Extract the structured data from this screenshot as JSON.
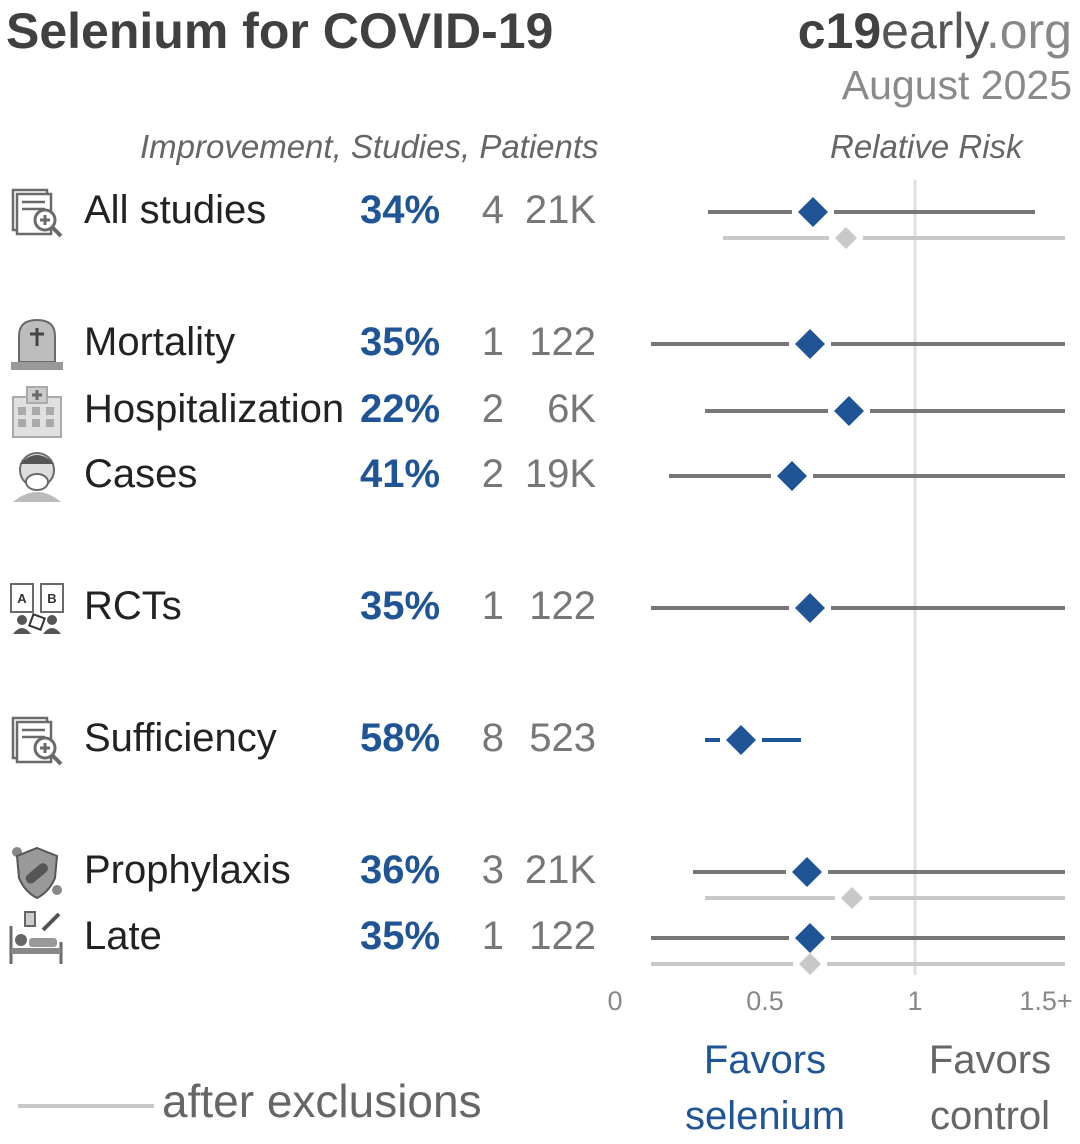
{
  "header": {
    "title": "Selenium for COVID-19",
    "brand_bold": "c19",
    "brand_mid": "early",
    "brand_end": ".org",
    "date": "August 2025",
    "columns_label": "Improvement, Studies, Patients",
    "axis_title": "Relative Risk"
  },
  "legend": {
    "label": "after exclusions",
    "line_color": "#c8c8c8"
  },
  "favors": {
    "left_line1": "Favors",
    "left_line2": "selenium",
    "right_line1": "Favors",
    "right_line2": "control"
  },
  "colors": {
    "accent_blue": "#1f5597",
    "ci_gray": "#777777",
    "exclusion_gray": "#c8c8c8",
    "ref_line": "#e0e0e0"
  },
  "chart_data": {
    "type": "forest",
    "xlim": [
      0,
      1.5
    ],
    "xticks": [
      "0",
      "0.5",
      "1",
      "1.5+"
    ],
    "xtick_values": [
      0,
      0.5,
      1,
      1.5
    ],
    "reference_line": 1,
    "rows": [
      {
        "label": "All studies",
        "icon": "study-analysis-icon",
        "improvement": "34%",
        "studies": "4",
        "patients": "21K",
        "rr": 0.66,
        "lo": 0.31,
        "hi": 1.4,
        "excl": {
          "rr": 0.77,
          "lo": 0.36,
          "hi": 1.5
        }
      },
      {
        "label": "Mortality",
        "icon": "tombstone-icon",
        "improvement": "35%",
        "studies": "1",
        "patients": "122",
        "rr": 0.65,
        "lo": 0.12,
        "hi": 1.5
      },
      {
        "label": "Hospitalization",
        "icon": "hospital-icon",
        "improvement": "22%",
        "studies": "2",
        "patients": "6K",
        "rr": 0.78,
        "lo": 0.3,
        "hi": 1.5
      },
      {
        "label": "Cases",
        "icon": "sick-person-icon",
        "improvement": "41%",
        "studies": "2",
        "patients": "19K",
        "rr": 0.59,
        "lo": 0.18,
        "hi": 1.5
      },
      {
        "label": "RCTs",
        "icon": "randomized-trial-icon",
        "improvement": "35%",
        "studies": "1",
        "patients": "122",
        "rr": 0.65,
        "lo": 0.12,
        "hi": 1.5
      },
      {
        "label": "Sufficiency",
        "icon": "study-analysis-icon",
        "improvement": "58%",
        "studies": "8",
        "patients": "523",
        "rr": 0.42,
        "lo": 0.3,
        "hi": 0.62,
        "blue_ci": true
      },
      {
        "label": "Prophylaxis",
        "icon": "shield-virus-icon",
        "improvement": "36%",
        "studies": "3",
        "patients": "21K",
        "rr": 0.64,
        "lo": 0.26,
        "hi": 1.5,
        "excl": {
          "rr": 0.79,
          "lo": 0.3,
          "hi": 1.5
        }
      },
      {
        "label": "Late",
        "icon": "hospital-bed-icon",
        "improvement": "35%",
        "studies": "1",
        "patients": "122",
        "rr": 0.65,
        "lo": 0.12,
        "hi": 1.5,
        "excl": {
          "rr": 0.65,
          "lo": 0.12,
          "hi": 1.5
        }
      }
    ]
  }
}
